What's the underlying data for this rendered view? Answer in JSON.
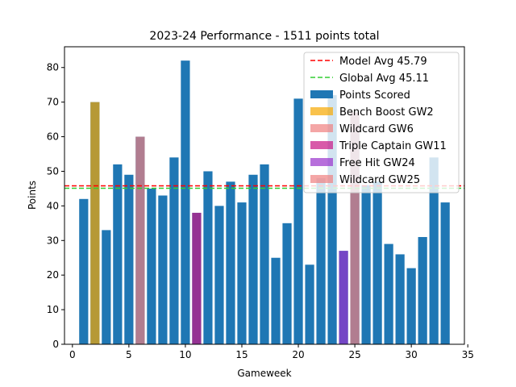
{
  "chart_data": {
    "type": "bar",
    "title": "2023-24 Performance - 1511 points total",
    "xlabel": "Gameweek",
    "ylabel": "Points",
    "xlim": [
      -0.7,
      34.7
    ],
    "ylim": [
      0,
      86
    ],
    "xticks": [
      0,
      5,
      10,
      15,
      20,
      25,
      30,
      35
    ],
    "yticks": [
      0,
      10,
      20,
      30,
      40,
      50,
      60,
      70,
      80
    ],
    "grid": false,
    "legend_position": "top-right",
    "x": [
      1,
      2,
      3,
      4,
      5,
      6,
      7,
      8,
      9,
      10,
      11,
      12,
      13,
      14,
      15,
      16,
      17,
      18,
      19,
      20,
      21,
      22,
      23,
      24,
      25,
      26,
      27,
      28,
      29,
      30,
      31,
      32,
      33
    ],
    "values": [
      42,
      70,
      33,
      52,
      49,
      60,
      45,
      43,
      54,
      82,
      38,
      50,
      40,
      47,
      41,
      49,
      52,
      25,
      35,
      71,
      23,
      48,
      72,
      27,
      67,
      46,
      47,
      29,
      26,
      22,
      31,
      54,
      41
    ],
    "bar_color": "#1f77b4",
    "chips": [
      {
        "name": "Bench Boost GW2",
        "gameweek": 2,
        "color": "#f7a800",
        "alpha": 0.7
      },
      {
        "name": "Wildcard GW6",
        "gameweek": 6,
        "color": "#f08080",
        "alpha": 0.7
      },
      {
        "name": "Triple Captain GW11",
        "gameweek": 11,
        "color": "#c71585",
        "alpha": 0.7
      },
      {
        "name": "Free Hit GW24",
        "gameweek": 24,
        "color": "#9932cc",
        "alpha": 0.7
      },
      {
        "name": "Wildcard GW25",
        "gameweek": 25,
        "color": "#f08080",
        "alpha": 0.7
      }
    ],
    "reference_lines": [
      {
        "name": "Model Avg 45.79",
        "value": 45.79,
        "color": "#ff0000"
      },
      {
        "name": "Global Avg 45.11",
        "value": 45.11,
        "color": "#32cd32"
      }
    ],
    "series_label": "Points Scored"
  }
}
